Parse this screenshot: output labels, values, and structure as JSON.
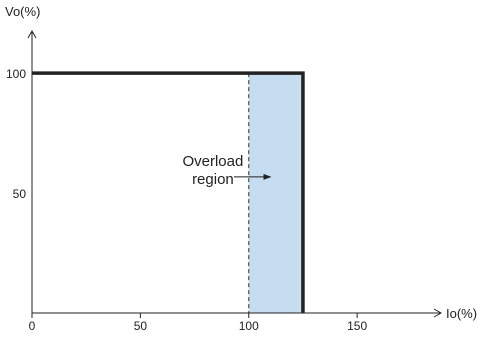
{
  "chart_data": {
    "type": "line",
    "title": "",
    "xlabel": "Io(%)",
    "ylabel": "Vo(%)",
    "xlim": [
      0,
      185
    ],
    "ylim": [
      0,
      113
    ],
    "x_ticks": [
      {
        "value": 0,
        "label": "0"
      },
      {
        "value": 50,
        "label": "50"
      },
      {
        "value": 100,
        "label": "100"
      },
      {
        "value": 150,
        "label": "150"
      }
    ],
    "y_ticks": [
      {
        "value": 50,
        "label": "50"
      },
      {
        "value": 100,
        "label": "100"
      }
    ],
    "grid": false,
    "series": [
      {
        "values": [
          {
            "x": 0,
            "y": 100
          },
          {
            "x": 125,
            "y": 100
          },
          {
            "x": 125,
            "y": 0
          }
        ]
      }
    ],
    "overload_region": {
      "x_start": 100,
      "x_end": 125,
      "fill_color": "#c6dcf1"
    },
    "reference_line": {
      "x": 100,
      "style": "dashed"
    },
    "annotation": {
      "lines": [
        "Overload",
        "region"
      ],
      "x": 95,
      "y": 58,
      "arrow_to_x": 110
    }
  }
}
